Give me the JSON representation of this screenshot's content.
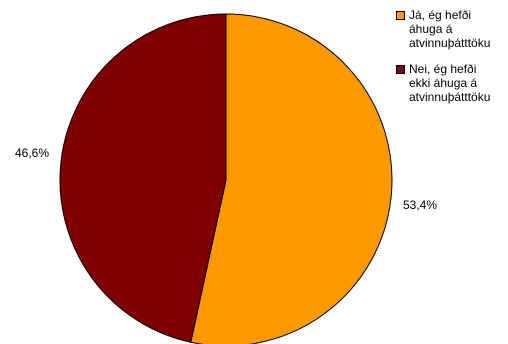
{
  "chart_data": {
    "type": "pie",
    "slices": [
      {
        "label_lines": [
          "Já, ég hefði",
          "áhuga á",
          "atvinnuþátttöku"
        ],
        "value": 53.4,
        "value_label": "53,4%",
        "color": "#FF9900"
      },
      {
        "label_lines": [
          "Nei, ég hefði",
          "ekki áhuga á",
          "atvinnuþátttöku"
        ],
        "value": 46.6,
        "value_label": "46,6%",
        "color": "#800000"
      }
    ],
    "legend_position": "top-right"
  }
}
